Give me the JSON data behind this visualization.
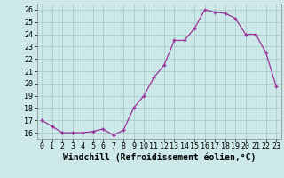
{
  "x": [
    0,
    1,
    2,
    3,
    4,
    5,
    6,
    7,
    8,
    9,
    10,
    11,
    12,
    13,
    14,
    15,
    16,
    17,
    18,
    19,
    20,
    21,
    22,
    23
  ],
  "y": [
    17.0,
    16.5,
    16.0,
    16.0,
    16.0,
    16.1,
    16.3,
    15.8,
    16.2,
    18.0,
    19.0,
    20.5,
    21.5,
    23.5,
    23.5,
    24.5,
    26.0,
    25.8,
    25.7,
    25.3,
    24.0,
    24.0,
    22.5,
    19.8
  ],
  "xlim": [
    -0.5,
    23.5
  ],
  "ylim": [
    15.5,
    26.5
  ],
  "yticks": [
    16,
    17,
    18,
    19,
    20,
    21,
    22,
    23,
    24,
    25,
    26
  ],
  "xticks": [
    0,
    1,
    2,
    3,
    4,
    5,
    6,
    7,
    8,
    9,
    10,
    11,
    12,
    13,
    14,
    15,
    16,
    17,
    18,
    19,
    20,
    21,
    22,
    23
  ],
  "xtick_labels": [
    "0",
    "1",
    "2",
    "3",
    "4",
    "5",
    "6",
    "7",
    "8",
    "9",
    "10",
    "11",
    "12",
    "13",
    "14",
    "15",
    "16",
    "17",
    "18",
    "19",
    "20",
    "21",
    "22",
    "23"
  ],
  "xlabel": "Windchill (Refroidissement éolien,°C)",
  "line_color": "#993399",
  "marker_color": "#993399",
  "bg_color": "#cce8e8",
  "grid_color": "#aacccc",
  "xlabel_fontsize": 7,
  "tick_fontsize": 6,
  "fig_width": 3.2,
  "fig_height": 2.0,
  "dpi": 100
}
